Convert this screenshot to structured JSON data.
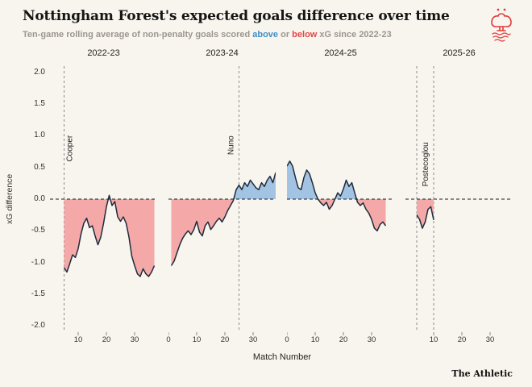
{
  "header": {
    "title": "Nottingham Forest's expected goals difference over time",
    "subtitle": {
      "part1": "Ten-game rolling average of non-penalty goals scored ",
      "above": "above",
      "mid": " or ",
      "below": "below",
      "part2": " xG since 2022-23"
    }
  },
  "footer": {
    "brand": "The Athletic"
  },
  "chart_data": {
    "type": "area",
    "title": "Nottingham Forest's expected goals difference over time",
    "xlabel": "Match Number",
    "ylabel": "xG difference",
    "ylim": [
      -2.1,
      2.1
    ],
    "yticks": [
      "2.0",
      "1.5",
      "1.0",
      "0.5",
      "0.0",
      "-0.5",
      "-1.0",
      "-1.5",
      "-2.0"
    ],
    "x_domain": [
      0,
      38
    ],
    "grid": false,
    "zero_line": "dashed",
    "legend": "none",
    "colors": {
      "above_fill": "#a3c3e3",
      "below_fill": "#f5a8a8",
      "line": "#1e2b3c",
      "zero_line": "#1a1a1a",
      "manager_line": "#8c8c8c",
      "accent_red": "#e03c3c"
    },
    "panels": [
      {
        "season": "2022-23",
        "xticks": [
          10,
          20,
          30
        ],
        "managers": [
          {
            "name": "Cooper",
            "x": 5,
            "label_side": "right",
            "label_center_y": 0.8
          }
        ],
        "points": [
          [
            5,
            -1.08
          ],
          [
            6,
            -1.15
          ],
          [
            7,
            -1.02
          ],
          [
            8,
            -0.88
          ],
          [
            9,
            -0.92
          ],
          [
            10,
            -0.78
          ],
          [
            11,
            -0.55
          ],
          [
            12,
            -0.38
          ],
          [
            13,
            -0.3
          ],
          [
            14,
            -0.45
          ],
          [
            15,
            -0.42
          ],
          [
            16,
            -0.58
          ],
          [
            17,
            -0.72
          ],
          [
            18,
            -0.6
          ],
          [
            19,
            -0.38
          ],
          [
            20,
            -0.12
          ],
          [
            21,
            0.06
          ],
          [
            22,
            -0.1
          ],
          [
            23,
            -0.04
          ],
          [
            24,
            -0.28
          ],
          [
            25,
            -0.35
          ],
          [
            26,
            -0.28
          ],
          [
            27,
            -0.38
          ],
          [
            28,
            -0.6
          ],
          [
            29,
            -0.9
          ],
          [
            30,
            -1.05
          ],
          [
            31,
            -1.18
          ],
          [
            32,
            -1.22
          ],
          [
            33,
            -1.1
          ],
          [
            34,
            -1.18
          ],
          [
            35,
            -1.22
          ],
          [
            36,
            -1.15
          ],
          [
            37,
            -1.05
          ]
        ]
      },
      {
        "season": "2023-24",
        "xticks": [
          0,
          10,
          20,
          30
        ],
        "managers": [
          {
            "name": "Nuno",
            "x": 25,
            "label_side": "left",
            "label_center_y": 0.85
          }
        ],
        "points": [
          [
            1,
            -1.05
          ],
          [
            2,
            -0.98
          ],
          [
            3,
            -0.85
          ],
          [
            4,
            -0.72
          ],
          [
            5,
            -0.62
          ],
          [
            6,
            -0.55
          ],
          [
            7,
            -0.5
          ],
          [
            8,
            -0.56
          ],
          [
            9,
            -0.48
          ],
          [
            10,
            -0.35
          ],
          [
            11,
            -0.52
          ],
          [
            12,
            -0.58
          ],
          [
            13,
            -0.42
          ],
          [
            14,
            -0.36
          ],
          [
            15,
            -0.48
          ],
          [
            16,
            -0.42
          ],
          [
            17,
            -0.35
          ],
          [
            18,
            -0.3
          ],
          [
            19,
            -0.36
          ],
          [
            20,
            -0.28
          ],
          [
            21,
            -0.18
          ],
          [
            22,
            -0.1
          ],
          [
            23,
            -0.02
          ],
          [
            24,
            0.15
          ],
          [
            25,
            0.22
          ],
          [
            26,
            0.15
          ],
          [
            27,
            0.26
          ],
          [
            28,
            0.2
          ],
          [
            29,
            0.3
          ],
          [
            30,
            0.24
          ],
          [
            31,
            0.18
          ],
          [
            32,
            0.15
          ],
          [
            33,
            0.26
          ],
          [
            34,
            0.2
          ],
          [
            35,
            0.3
          ],
          [
            36,
            0.36
          ],
          [
            37,
            0.26
          ],
          [
            38,
            0.42
          ]
        ]
      },
      {
        "season": "2024-25",
        "xticks": [
          0,
          10,
          20,
          30
        ],
        "managers": [],
        "points": [
          [
            0,
            0.52
          ],
          [
            1,
            0.6
          ],
          [
            2,
            0.52
          ],
          [
            3,
            0.34
          ],
          [
            4,
            0.18
          ],
          [
            5,
            0.15
          ],
          [
            6,
            0.34
          ],
          [
            7,
            0.46
          ],
          [
            8,
            0.4
          ],
          [
            9,
            0.26
          ],
          [
            10,
            0.1
          ],
          [
            11,
            0.0
          ],
          [
            12,
            -0.06
          ],
          [
            13,
            -0.1
          ],
          [
            14,
            -0.05
          ],
          [
            15,
            -0.16
          ],
          [
            16,
            -0.1
          ],
          [
            17,
            0.0
          ],
          [
            18,
            0.1
          ],
          [
            19,
            0.05
          ],
          [
            20,
            0.16
          ],
          [
            21,
            0.3
          ],
          [
            22,
            0.2
          ],
          [
            23,
            0.26
          ],
          [
            24,
            0.1
          ],
          [
            25,
            -0.05
          ],
          [
            26,
            -0.1
          ],
          [
            27,
            -0.06
          ],
          [
            28,
            -0.16
          ],
          [
            29,
            -0.22
          ],
          [
            30,
            -0.32
          ],
          [
            31,
            -0.46
          ],
          [
            32,
            -0.5
          ],
          [
            33,
            -0.4
          ],
          [
            34,
            -0.36
          ],
          [
            35,
            -0.42
          ]
        ]
      },
      {
        "season": "2025-26",
        "xticks": [
          10,
          20,
          30
        ],
        "managers": [
          {
            "name": "",
            "x": 4
          },
          {
            "name": "Postecoglou",
            "x": 10,
            "label_side": "left",
            "label_center_y": 0.55
          }
        ],
        "points": [
          [
            4,
            -0.25
          ],
          [
            5,
            -0.32
          ],
          [
            6,
            -0.46
          ],
          [
            7,
            -0.36
          ],
          [
            8,
            -0.16
          ],
          [
            9,
            -0.12
          ],
          [
            10,
            -0.33
          ]
        ]
      }
    ]
  }
}
